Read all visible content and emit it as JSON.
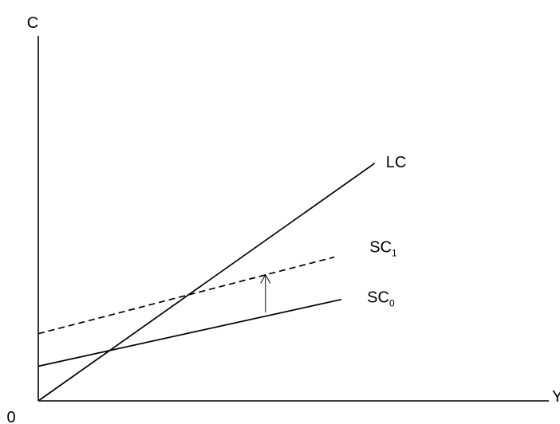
{
  "chart_data": {
    "type": "line",
    "xlabel": "Y",
    "ylabel": "C",
    "origin_label": "0",
    "xlim": [
      0,
      10
    ],
    "ylim": [
      0,
      10
    ],
    "grid": false,
    "legend": "none",
    "series": [
      {
        "name": "LC",
        "x": [
          0,
          6.59
        ],
        "y": [
          0,
          6.51
        ],
        "style": "solid",
        "color": "#000000",
        "label_main": "LC",
        "label_sub": ""
      },
      {
        "name": "SC1",
        "x": [
          0,
          5.8
        ],
        "y": [
          1.84,
          3.94
        ],
        "style": "dashed",
        "color": "#000000",
        "label_main": "SC",
        "label_sub": "1"
      },
      {
        "name": "SC0",
        "x": [
          0,
          5.94
        ],
        "y": [
          0.95,
          2.78
        ],
        "style": "solid",
        "color": "#000000",
        "label_main": "SC",
        "label_sub": "0"
      }
    ],
    "annotations": [
      {
        "type": "arrow",
        "direction": "up",
        "x": 4.45,
        "y_from": 2.42,
        "y_to": 3.46
      }
    ]
  }
}
